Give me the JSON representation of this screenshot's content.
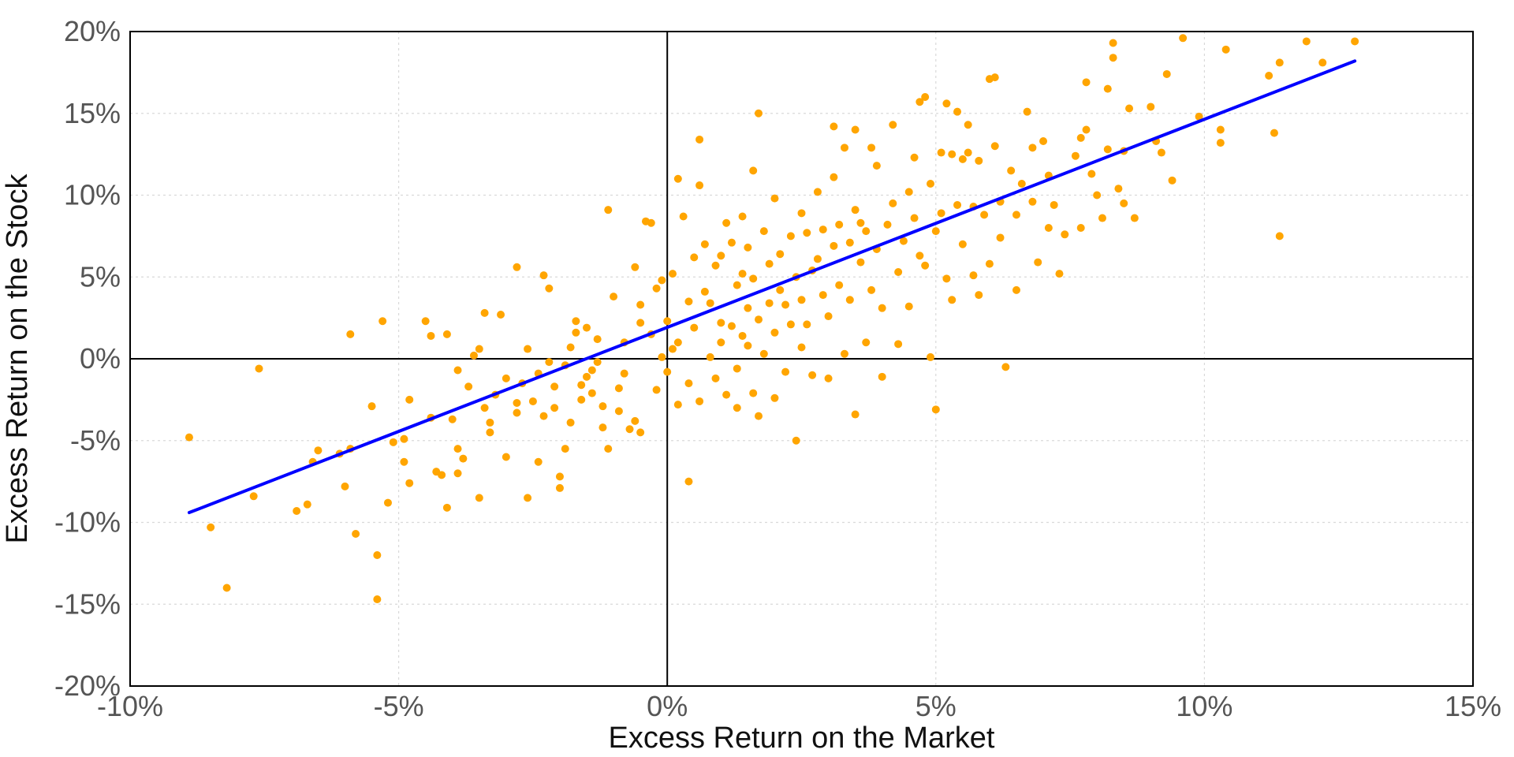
{
  "chart_data": {
    "type": "scatter",
    "title": "",
    "xlabel": "Excess Return on the Market",
    "ylabel": "Excess Return on the Stock",
    "xlim": [
      -10,
      15
    ],
    "ylim": [
      -20,
      20
    ],
    "x_ticks": [
      -10,
      -5,
      0,
      5,
      10,
      15
    ],
    "y_ticks": [
      -20,
      -15,
      -10,
      -5,
      0,
      5,
      10,
      15,
      20
    ],
    "x_tick_labels": [
      "-10%",
      "-5%",
      "0%",
      "5%",
      "10%",
      "15%"
    ],
    "y_tick_labels": [
      "-20%",
      "-15%",
      "-10%",
      "-5%",
      "0%",
      "5%",
      "10%",
      "15%",
      "20%"
    ],
    "grid": true,
    "zero_lines": true,
    "colors": {
      "points": "#FFA500",
      "fit_line": "#0000FF",
      "axes": "#000000"
    },
    "series": [
      {
        "type": "scatter",
        "points": [
          [
            -8.9,
            -4.8
          ],
          [
            -8.5,
            -10.3
          ],
          [
            -8.2,
            -14.0
          ],
          [
            -7.6,
            -0.6
          ],
          [
            -7.7,
            -8.4
          ],
          [
            -6.9,
            -9.3
          ],
          [
            -6.7,
            -8.9
          ],
          [
            -6.6,
            -6.3
          ],
          [
            -6.5,
            -5.6
          ],
          [
            -6.1,
            -5.8
          ],
          [
            -6.0,
            -7.8
          ],
          [
            -5.9,
            -5.5
          ],
          [
            -5.9,
            1.5
          ],
          [
            -5.8,
            -10.7
          ],
          [
            -5.5,
            -2.9
          ],
          [
            -5.4,
            -14.7
          ],
          [
            -5.4,
            -12.0
          ],
          [
            -5.3,
            2.3
          ],
          [
            -5.2,
            -8.8
          ],
          [
            -5.1,
            -5.1
          ],
          [
            -4.9,
            -4.9
          ],
          [
            -4.9,
            -6.3
          ],
          [
            -4.8,
            -2.5
          ],
          [
            -4.8,
            -7.6
          ],
          [
            -4.5,
            2.3
          ],
          [
            -4.4,
            1.4
          ],
          [
            -4.4,
            -3.6
          ],
          [
            -4.3,
            -6.9
          ],
          [
            -4.2,
            -7.1
          ],
          [
            -4.1,
            -9.1
          ],
          [
            -4.1,
            1.5
          ],
          [
            -4.0,
            -3.7
          ],
          [
            -3.9,
            -0.7
          ],
          [
            -3.9,
            -5.5
          ],
          [
            -3.9,
            -7.0
          ],
          [
            -3.8,
            -6.1
          ],
          [
            -3.7,
            -1.7
          ],
          [
            -3.6,
            0.2
          ],
          [
            -3.5,
            0.6
          ],
          [
            -3.5,
            -8.5
          ],
          [
            -3.4,
            -3.0
          ],
          [
            -3.4,
            2.8
          ],
          [
            -3.3,
            -3.9
          ],
          [
            -3.3,
            -4.5
          ],
          [
            -3.2,
            -2.2
          ],
          [
            -3.1,
            2.7
          ],
          [
            -3.0,
            -6.0
          ],
          [
            -3.0,
            -1.2
          ],
          [
            -2.8,
            -3.3
          ],
          [
            -2.8,
            -2.7
          ],
          [
            -2.8,
            5.6
          ],
          [
            -2.7,
            -1.5
          ],
          [
            -2.6,
            0.6
          ],
          [
            -2.6,
            -8.5
          ],
          [
            -2.5,
            -2.6
          ],
          [
            -2.4,
            -6.3
          ],
          [
            -2.4,
            -0.9
          ],
          [
            -2.3,
            -3.5
          ],
          [
            -2.3,
            5.1
          ],
          [
            -2.2,
            -0.2
          ],
          [
            -2.2,
            4.3
          ],
          [
            -2.1,
            -1.7
          ],
          [
            -2.1,
            -3.0
          ],
          [
            -2.0,
            -7.9
          ],
          [
            -2.0,
            -7.2
          ],
          [
            -1.9,
            -5.5
          ],
          [
            -1.9,
            -0.4
          ],
          [
            -1.8,
            0.7
          ],
          [
            -1.8,
            -3.9
          ],
          [
            -1.7,
            1.6
          ],
          [
            -1.7,
            2.3
          ],
          [
            -1.6,
            -2.5
          ],
          [
            -1.6,
            -1.6
          ],
          [
            -1.5,
            -1.1
          ],
          [
            -1.5,
            1.9
          ],
          [
            -1.4,
            -0.7
          ],
          [
            -1.4,
            -2.1
          ],
          [
            -1.3,
            -0.2
          ],
          [
            -1.3,
            1.2
          ],
          [
            -1.2,
            -2.9
          ],
          [
            -1.2,
            -4.2
          ],
          [
            -1.1,
            -5.5
          ],
          [
            -1.1,
            9.1
          ],
          [
            -1.0,
            3.8
          ],
          [
            -0.9,
            -1.8
          ],
          [
            -0.9,
            -3.2
          ],
          [
            -0.8,
            -0.9
          ],
          [
            -0.8,
            1.0
          ],
          [
            -0.7,
            -4.3
          ],
          [
            -0.6,
            5.6
          ],
          [
            -0.6,
            -3.8
          ],
          [
            -0.5,
            2.2
          ],
          [
            -0.5,
            -4.5
          ],
          [
            -0.5,
            3.3
          ],
          [
            -0.4,
            8.4
          ],
          [
            -0.3,
            8.3
          ],
          [
            -0.3,
            1.5
          ],
          [
            -0.2,
            4.3
          ],
          [
            -0.2,
            -1.9
          ],
          [
            -0.1,
            0.1
          ],
          [
            -0.1,
            4.8
          ],
          [
            0.0,
            2.3
          ],
          [
            0.0,
            -0.8
          ],
          [
            0.1,
            5.2
          ],
          [
            0.1,
            0.6
          ],
          [
            0.2,
            -2.8
          ],
          [
            0.2,
            1.0
          ],
          [
            0.2,
            11.0
          ],
          [
            0.3,
            8.7
          ],
          [
            0.4,
            3.5
          ],
          [
            0.4,
            -1.5
          ],
          [
            0.4,
            -7.5
          ],
          [
            0.5,
            1.9
          ],
          [
            0.5,
            6.2
          ],
          [
            0.6,
            10.6
          ],
          [
            0.6,
            13.4
          ],
          [
            0.6,
            -2.6
          ],
          [
            0.7,
            4.1
          ],
          [
            0.7,
            7.0
          ],
          [
            0.8,
            3.4
          ],
          [
            0.8,
            0.1
          ],
          [
            0.9,
            -1.2
          ],
          [
            0.9,
            5.7
          ],
          [
            1.0,
            2.2
          ],
          [
            1.0,
            6.3
          ],
          [
            1.0,
            1.0
          ],
          [
            1.1,
            -2.2
          ],
          [
            1.1,
            8.3
          ],
          [
            1.2,
            2.0
          ],
          [
            1.2,
            7.1
          ],
          [
            1.3,
            -0.6
          ],
          [
            1.3,
            4.5
          ],
          [
            1.3,
            -3.0
          ],
          [
            1.4,
            8.7
          ],
          [
            1.4,
            1.4
          ],
          [
            1.4,
            5.2
          ],
          [
            1.5,
            3.1
          ],
          [
            1.5,
            6.8
          ],
          [
            1.5,
            0.8
          ],
          [
            1.6,
            11.5
          ],
          [
            1.6,
            4.9
          ],
          [
            1.6,
            -2.1
          ],
          [
            1.7,
            2.4
          ],
          [
            1.7,
            15.0
          ],
          [
            1.7,
            -3.5
          ],
          [
            1.8,
            7.8
          ],
          [
            1.8,
            0.3
          ],
          [
            1.9,
            5.8
          ],
          [
            1.9,
            3.4
          ],
          [
            2.0,
            9.8
          ],
          [
            2.0,
            1.6
          ],
          [
            2.0,
            -2.4
          ],
          [
            2.1,
            6.4
          ],
          [
            2.1,
            4.2
          ],
          [
            2.2,
            3.3
          ],
          [
            2.2,
            -0.8
          ],
          [
            2.3,
            7.5
          ],
          [
            2.3,
            2.1
          ],
          [
            2.4,
            5.0
          ],
          [
            2.4,
            -5.0
          ],
          [
            2.5,
            8.9
          ],
          [
            2.5,
            3.6
          ],
          [
            2.5,
            0.7
          ],
          [
            2.6,
            7.7
          ],
          [
            2.6,
            2.1
          ],
          [
            2.7,
            5.4
          ],
          [
            2.7,
            -1.0
          ],
          [
            2.8,
            10.2
          ],
          [
            2.8,
            6.1
          ],
          [
            2.9,
            3.9
          ],
          [
            2.9,
            7.9
          ],
          [
            3.0,
            -1.2
          ],
          [
            3.0,
            2.6
          ],
          [
            3.1,
            14.2
          ],
          [
            3.1,
            11.1
          ],
          [
            3.1,
            6.9
          ],
          [
            3.2,
            4.5
          ],
          [
            3.2,
            8.2
          ],
          [
            3.3,
            12.9
          ],
          [
            3.3,
            0.3
          ],
          [
            3.4,
            7.1
          ],
          [
            3.4,
            3.6
          ],
          [
            3.5,
            14.0
          ],
          [
            3.5,
            9.1
          ],
          [
            3.5,
            -3.4
          ],
          [
            3.6,
            5.9
          ],
          [
            3.6,
            8.3
          ],
          [
            3.7,
            7.8
          ],
          [
            3.7,
            1.0
          ],
          [
            3.8,
            4.2
          ],
          [
            3.8,
            12.9
          ],
          [
            3.9,
            11.8
          ],
          [
            3.9,
            6.7
          ],
          [
            4.0,
            3.1
          ],
          [
            4.0,
            -1.1
          ],
          [
            4.1,
            8.2
          ],
          [
            4.2,
            14.3
          ],
          [
            4.2,
            9.5
          ],
          [
            4.3,
            5.3
          ],
          [
            4.3,
            0.9
          ],
          [
            4.4,
            7.2
          ],
          [
            4.5,
            10.2
          ],
          [
            4.5,
            3.2
          ],
          [
            4.6,
            8.6
          ],
          [
            4.6,
            12.3
          ],
          [
            4.7,
            6.3
          ],
          [
            4.7,
            15.7
          ],
          [
            4.8,
            5.7
          ],
          [
            4.8,
            16.0
          ],
          [
            4.9,
            0.1
          ],
          [
            4.9,
            10.7
          ],
          [
            5.0,
            -3.1
          ],
          [
            5.0,
            7.8
          ],
          [
            5.1,
            12.6
          ],
          [
            5.1,
            8.9
          ],
          [
            5.2,
            4.9
          ],
          [
            5.2,
            15.6
          ],
          [
            5.3,
            3.6
          ],
          [
            5.3,
            12.5
          ],
          [
            5.4,
            9.4
          ],
          [
            5.4,
            15.1
          ],
          [
            5.5,
            12.2
          ],
          [
            5.5,
            7.0
          ],
          [
            5.6,
            14.3
          ],
          [
            5.6,
            12.6
          ],
          [
            5.7,
            5.1
          ],
          [
            5.7,
            9.3
          ],
          [
            5.8,
            3.9
          ],
          [
            5.8,
            12.1
          ],
          [
            5.9,
            8.8
          ],
          [
            6.0,
            17.1
          ],
          [
            6.0,
            5.8
          ],
          [
            6.1,
            13.0
          ],
          [
            6.1,
            17.2
          ],
          [
            6.2,
            7.4
          ],
          [
            6.2,
            9.6
          ],
          [
            6.3,
            -0.5
          ],
          [
            6.4,
            11.5
          ],
          [
            6.5,
            4.2
          ],
          [
            6.5,
            8.8
          ],
          [
            6.6,
            10.7
          ],
          [
            6.7,
            15.1
          ],
          [
            6.8,
            12.9
          ],
          [
            6.8,
            9.6
          ],
          [
            6.9,
            5.9
          ],
          [
            7.0,
            13.3
          ],
          [
            7.1,
            11.2
          ],
          [
            7.1,
            8.0
          ],
          [
            7.2,
            9.4
          ],
          [
            7.3,
            5.2
          ],
          [
            7.4,
            7.6
          ],
          [
            7.6,
            12.4
          ],
          [
            7.7,
            8.0
          ],
          [
            7.7,
            13.5
          ],
          [
            7.8,
            14.0
          ],
          [
            7.8,
            16.9
          ],
          [
            7.9,
            11.3
          ],
          [
            8.0,
            10.0
          ],
          [
            8.1,
            8.6
          ],
          [
            8.2,
            16.5
          ],
          [
            8.2,
            12.8
          ],
          [
            8.3,
            19.3
          ],
          [
            8.3,
            18.4
          ],
          [
            8.4,
            10.4
          ],
          [
            8.5,
            9.5
          ],
          [
            8.5,
            12.7
          ],
          [
            8.6,
            15.3
          ],
          [
            8.7,
            8.6
          ],
          [
            9.0,
            15.4
          ],
          [
            9.1,
            13.3
          ],
          [
            9.2,
            12.6
          ],
          [
            9.3,
            17.4
          ],
          [
            9.4,
            10.9
          ],
          [
            9.6,
            19.6
          ],
          [
            9.9,
            14.8
          ],
          [
            10.3,
            14.0
          ],
          [
            10.3,
            13.2
          ],
          [
            10.4,
            18.9
          ],
          [
            11.2,
            17.3
          ],
          [
            11.3,
            13.8
          ],
          [
            11.4,
            18.1
          ],
          [
            11.4,
            7.5
          ],
          [
            11.9,
            19.4
          ],
          [
            12.2,
            18.1
          ],
          [
            12.8,
            19.4
          ]
        ]
      },
      {
        "type": "line",
        "points": [
          [
            -8.9,
            -9.4
          ],
          [
            12.8,
            18.2
          ]
        ]
      }
    ]
  }
}
